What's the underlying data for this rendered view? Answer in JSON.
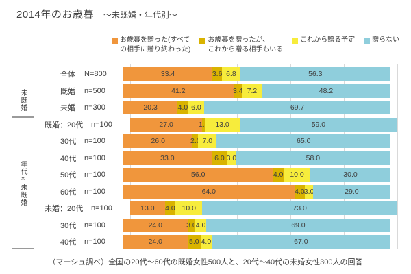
{
  "title": "2014年のお歳暮",
  "subtitle": "〜未既婚・年代別〜",
  "caption": "（マーシュ調べ）全国の20代〜60代の既婚女性500人と、20代〜40代の未婚女性300人の回答",
  "legend": [
    {
      "name": "gifted-all",
      "color": "#F0963C",
      "lines": [
        "お歳暮を贈った(すべて",
        "の相手に贈り終わった)"
      ]
    },
    {
      "name": "gifted-some-remaining",
      "color": "#D9B300",
      "lines": [
        "お歳暮を贈ったが、",
        "これから贈る相手もいる"
      ]
    },
    {
      "name": "will-gift",
      "color": "#F7EC3C",
      "lines": [
        "これから贈る予定"
      ]
    },
    {
      "name": "will-not-gift",
      "color": "#8FCEDC",
      "lines": [
        "贈らない"
      ]
    }
  ],
  "side_groups": [
    {
      "label": "未既婚"
    },
    {
      "label": "年代×未既婚"
    }
  ],
  "chart_data": {
    "type": "bar",
    "orientation": "horizontal",
    "stacked": true,
    "xlim": [
      0,
      100
    ],
    "gridline_interval": 20,
    "grid": true,
    "legend_position": "top",
    "series_names": [
      "お歳暮を贈った(すべての相手に贈り終わった)",
      "お歳暮を贈ったが、これから贈る相手もいる",
      "これから贈る予定",
      "贈らない"
    ],
    "colors": [
      "#F0963C",
      "#D9B300",
      "#F7EC3C",
      "#8FCEDC"
    ],
    "rows": [
      {
        "prefix": "",
        "label": "全体",
        "n": "N=800",
        "values": [
          33.4,
          3.6,
          6.8,
          56.3
        ]
      },
      {
        "prefix": "",
        "label": "既婚",
        "n": "n=500",
        "values": [
          41.2,
          3.4,
          7.2,
          48.2
        ]
      },
      {
        "prefix": "",
        "label": "未婚",
        "n": "n=300",
        "values": [
          20.3,
          4.0,
          6.0,
          69.7
        ]
      },
      {
        "prefix": "既婚：",
        "label": "20代",
        "n": "n=100",
        "values": [
          27.0,
          1.0,
          13.0,
          59.0
        ]
      },
      {
        "prefix": "",
        "label": "30代",
        "n": "n=100",
        "values": [
          26.0,
          2.0,
          7.0,
          65.0
        ]
      },
      {
        "prefix": "",
        "label": "40代",
        "n": "n=100",
        "values": [
          33.0,
          6.0,
          3.0,
          58.0
        ]
      },
      {
        "prefix": "",
        "label": "50代",
        "n": "n=100",
        "values": [
          56.0,
          4.0,
          10.0,
          30.0
        ]
      },
      {
        "prefix": "",
        "label": "60代",
        "n": "n=100",
        "values": [
          64.0,
          4.0,
          3.0,
          29.0
        ]
      },
      {
        "prefix": "未婚：",
        "label": "20代",
        "n": "n=100",
        "values": [
          13.0,
          4.0,
          10.0,
          73.0
        ]
      },
      {
        "prefix": "",
        "label": "30代",
        "n": "n=100",
        "values": [
          24.0,
          3.0,
          4.0,
          69.0
        ]
      },
      {
        "prefix": "",
        "label": "40代",
        "n": "n=100",
        "values": [
          24.0,
          5.0,
          4.0,
          67.0
        ]
      }
    ]
  }
}
